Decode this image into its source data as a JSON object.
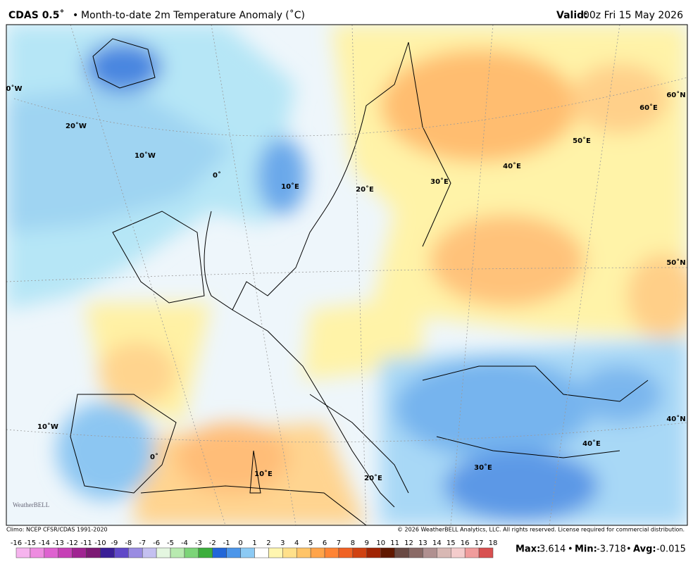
{
  "header": {
    "title": "CDAS 0.5˚",
    "separator": "•",
    "subtitle": "Month-to-date 2m Temperature Anomaly (˚C)",
    "valid_label": "Valid:",
    "valid_value": "00z Fri 15 May 2026"
  },
  "map": {
    "labels": [
      "0˚W",
      "20˚W",
      "10˚W",
      "0˚",
      "10˚E",
      "20˚E",
      "30˚E",
      "40˚E",
      "50˚E",
      "60˚E",
      "60˚N",
      "50˚N",
      "40˚N",
      "10˚W",
      "0˚",
      "10˚E",
      "20˚E",
      "30˚E",
      "40˚E"
    ],
    "logo": "WeatherBELL"
  },
  "footer": {
    "climo": "Climo: NCEP CFSR/CDAS 1991-2020",
    "copyright": "© 2026 WeatherBELL Analytics, LLC. All rights reserved. License required for commercial distribution."
  },
  "colorbar": {
    "ticks": [
      -16,
      -15,
      -14,
      -13,
      -12,
      -11,
      -10,
      -9,
      -8,
      -7,
      -6,
      -5,
      -4,
      -3,
      -2,
      -1,
      0,
      1,
      2,
      3,
      4,
      5,
      6,
      7,
      8,
      9,
      10,
      11,
      12,
      13,
      14,
      15,
      16,
      17,
      18
    ],
    "colors": [
      "#f6b4ee",
      "#ee8ce0",
      "#de62d0",
      "#c640b6",
      "#a02492",
      "#7c1a74",
      "#3a1e96",
      "#6048c8",
      "#9a8ce2",
      "#c4c0f0",
      "#e4f6e0",
      "#b8eab0",
      "#7cd478",
      "#3cae3c",
      "#2266d8",
      "#4c96ea",
      "#8ccaf4",
      "#ffffff",
      "#fff6b0",
      "#ffe08a",
      "#ffc468",
      "#ffa44a",
      "#ff8434",
      "#f06224",
      "#d04212",
      "#a02404",
      "#601800",
      "#6a4a44",
      "#8a6a66",
      "#b09090",
      "#d8b8b4",
      "#f4cccc",
      "#f09c9c",
      "#d85050",
      "#b81c1c"
    ]
  },
  "stats": {
    "max_label": "Max:",
    "max": 3.614,
    "min_label": "Min:",
    "min": -3.718,
    "avg_label": "Avg:",
    "avg": -0.015,
    "separator": "•"
  }
}
